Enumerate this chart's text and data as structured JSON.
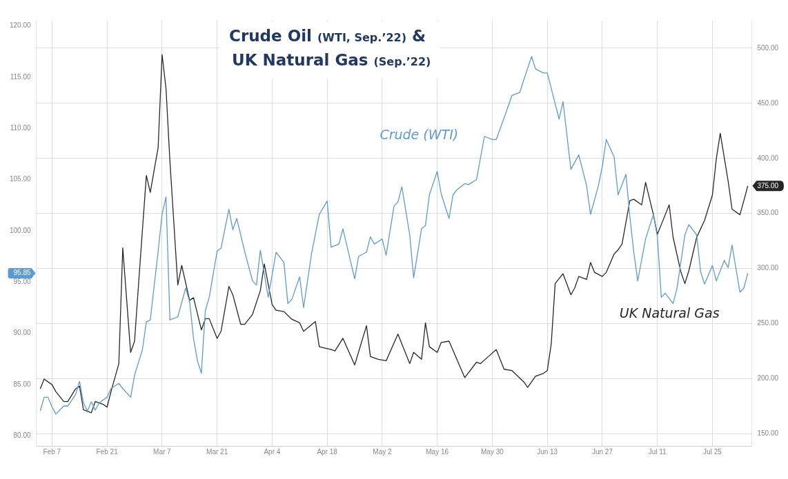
{
  "chart_data": {
    "type": "line",
    "title": "Crude Oil (WTI, Sep.’22) &\nUK Natural Gas (Sep.’22)",
    "xlim": [
      "--02-03",
      "--08-04"
    ],
    "xticks": [
      {
        "value": "--02-07",
        "label": "Feb 7"
      },
      {
        "value": "--02-21",
        "label": "Feb 21"
      },
      {
        "value": "--03-07",
        "label": "Mar 7"
      },
      {
        "value": "--03-21",
        "label": "Mar 21"
      },
      {
        "value": "--04-04",
        "label": "Apr 4"
      },
      {
        "value": "--04-18",
        "label": "Apr 18"
      },
      {
        "value": "--05-02",
        "label": "May 2"
      },
      {
        "value": "--05-16",
        "label": "May 16"
      },
      {
        "value": "--05-30",
        "label": "May 30"
      },
      {
        "value": "--06-13",
        "label": "Jun 13"
      },
      {
        "value": "--06-27",
        "label": "Jun 27"
      },
      {
        "value": "--07-11",
        "label": "Jul 11"
      },
      {
        "value": "--07-25",
        "label": "Jul 25"
      }
    ],
    "ylim": [
      79,
      120.5
    ],
    "yticks": [
      {
        "value": 80,
        "label": "80.00"
      },
      {
        "value": 85,
        "label": "85.00"
      },
      {
        "value": 90,
        "label": "90.00"
      },
      {
        "value": 95,
        "label": "95.00"
      },
      {
        "value": 95.85,
        "label": "95.85"
      },
      {
        "value": 100,
        "label": "100.00"
      },
      {
        "value": 105,
        "label": "105.00"
      },
      {
        "value": 110,
        "label": "110.00"
      },
      {
        "value": 115,
        "label": "115.00"
      },
      {
        "value": 120,
        "label": "120.00"
      }
    ],
    "y2lim": [
      139,
      525
    ],
    "y2ticks": [
      {
        "value": 150,
        "label": "150.00"
      },
      {
        "value": 200,
        "label": "200.00"
      },
      {
        "value": 250,
        "label": "250.00"
      },
      {
        "value": 300,
        "label": "300.00"
      },
      {
        "value": 350,
        "label": "350.00"
      },
      {
        "value": 375,
        "label": "375.00"
      },
      {
        "value": 400,
        "label": "400.00"
      },
      {
        "value": 450,
        "label": "450.00"
      },
      {
        "value": 500,
        "label": "500.00"
      }
    ],
    "grid": true,
    "marker": "none",
    "line_style": "solid",
    "series": [
      {
        "name": "Crude (WTI)",
        "color": "#5b9bd5",
        "axis": "y",
        "x": [
          "--02-04",
          "--02-05",
          "--02-06",
          "--02-07",
          "--02-08",
          "--02-10",
          "--02-11",
          "--02-13",
          "--02-14",
          "--02-15",
          "--02-16",
          "--02-17",
          "--02-18",
          "--02-19",
          "--02-21",
          "--02-22",
          "--02-24",
          "--02-25",
          "--02-27",
          "--02-28",
          "--03-02",
          "--03-03",
          "--03-04",
          "--03-06",
          "--03-07",
          "--03-08",
          "--03-09",
          "--03-11",
          "--03-13",
          "--03-14",
          "--03-15",
          "--03-16",
          "--03-17",
          "--03-18",
          "--03-19",
          "--03-21",
          "--03-22",
          "--03-24",
          "--03-25",
          "--03-26",
          "--03-28",
          "--03-30",
          "--03-31",
          "--04-01",
          "--04-03",
          "--04-05",
          "--04-07",
          "--04-08",
          "--04-09",
          "--04-11",
          "--04-12",
          "--04-14",
          "--04-16",
          "--04-18",
          "--04-19",
          "--04-21",
          "--04-22",
          "--04-25",
          "--04-26",
          "--04-28",
          "--04-29",
          "--04-30",
          "--05-02",
          "--05-03",
          "--05-05",
          "--05-06",
          "--05-07",
          "--05-09",
          "--05-10",
          "--05-12",
          "--05-13",
          "--05-14",
          "--05-16",
          "--05-17",
          "--05-19",
          "--05-20",
          "--05-21",
          "--05-23",
          "--05-24",
          "--05-26",
          "--05-28",
          "--05-30",
          "--05-31",
          "--06-02",
          "--06-04",
          "--06-06",
          "--06-07",
          "--06-09",
          "--06-10",
          "--06-12",
          "--06-13",
          "--06-14",
          "--06-16",
          "--06-17",
          "--06-19",
          "--06-20",
          "--06-21",
          "--06-23",
          "--06-24",
          "--06-26",
          "--06-27",
          "--06-28",
          "--06-30",
          "--07-01",
          "--07-03",
          "--07-04",
          "--07-05",
          "--07-06",
          "--07-08",
          "--07-10",
          "--07-11",
          "--07-12",
          "--07-13",
          "--07-15",
          "--07-16",
          "--07-18",
          "--07-19",
          "--07-21",
          "--07-22",
          "--07-23",
          "--07-25",
          "--07-26",
          "--07-28",
          "--07-29",
          "--07-30",
          "--08-01",
          "--08-02",
          "--08-03"
        ],
        "values": [
          82.4,
          83.75,
          83.75,
          82.8,
          82.1,
          82.9,
          82.9,
          84.0,
          85.3,
          83.2,
          82.4,
          83.3,
          82.5,
          83.2,
          83.75,
          84.6,
          85.1,
          84.6,
          83.75,
          85.9,
          88.4,
          91.1,
          91.3,
          98.0,
          101.6,
          103.3,
          91.3,
          91.6,
          94.4,
          93.1,
          89.5,
          87.3,
          86.1,
          92.2,
          93.5,
          98.0,
          98.3,
          102.1,
          100.1,
          101.2,
          98.0,
          95.1,
          94.7,
          98.1,
          93.5,
          97.9,
          96.9,
          92.9,
          93.3,
          95.5,
          92.5,
          97.7,
          101.6,
          102.9,
          98.4,
          98.7,
          100.2,
          95.3,
          97.5,
          97.9,
          99.4,
          98.7,
          99.2,
          97.6,
          102.4,
          102.8,
          104.3,
          99.6,
          95.4,
          100.2,
          100.5,
          103.5,
          105.8,
          103.6,
          101.2,
          103.5,
          104.0,
          104.6,
          104.5,
          105.0,
          109.2,
          108.9,
          108.9,
          111.0,
          113.2,
          113.5,
          114.7,
          117.0,
          115.8,
          115.4,
          115.4,
          113.9,
          110.9,
          112.6,
          106.0,
          106.7,
          107.4,
          104.4,
          101.6,
          104.4,
          106.3,
          108.9,
          107.2,
          103.5,
          105.5,
          101.4,
          97.9,
          95.1,
          99.2,
          101.6,
          99.4,
          93.5,
          93.9,
          92.9,
          94.4,
          99.6,
          100.6,
          99.6,
          96.0,
          94.8,
          96.6,
          95.1,
          97.1,
          96.4,
          98.6,
          94.0,
          94.4,
          95.85
        ]
      },
      {
        "name": "UK Natural Gas",
        "color": "#262626",
        "axis": "y2",
        "x": [
          "--02-04",
          "--02-05",
          "--02-07",
          "--02-08",
          "--02-10",
          "--02-11",
          "--02-13",
          "--02-14",
          "--02-15",
          "--02-17",
          "--02-18",
          "--02-20",
          "--02-21",
          "--02-22",
          "--02-24",
          "--02-25",
          "--02-27",
          "--02-28",
          "--03-01",
          "--03-03",
          "--03-04",
          "--03-06",
          "--03-07",
          "--03-08",
          "--03-09",
          "--03-11",
          "--03-12",
          "--03-14",
          "--03-15",
          "--03-17",
          "--03-18",
          "--03-19",
          "--03-21",
          "--03-22",
          "--03-24",
          "--03-25",
          "--03-27",
          "--03-28",
          "--03-30",
          "--04-01",
          "--04-02",
          "--04-04",
          "--04-05",
          "--04-07",
          "--04-09",
          "--04-11",
          "--04-12",
          "--04-15",
          "--04-16",
          "--04-19",
          "--04-20",
          "--04-22",
          "--04-25",
          "--04-28",
          "--04-29",
          "--05-01",
          "--05-03",
          "--05-06",
          "--05-09",
          "--05-10",
          "--05-12",
          "--05-13",
          "--05-14",
          "--05-16",
          "--05-17",
          "--05-19",
          "--05-23",
          "--05-26",
          "--05-27",
          "--05-29",
          "--05-31",
          "--06-02",
          "--06-04",
          "--06-07",
          "--06-08",
          "--06-10",
          "--06-12",
          "--06-13",
          "--06-14",
          "--06-15",
          "--06-17",
          "--06-19",
          "--06-20",
          "--06-21",
          "--06-23",
          "--06-24",
          "--06-25",
          "--06-27",
          "--06-28",
          "--06-30",
          "--07-01",
          "--07-02",
          "--07-04",
          "--07-05",
          "--07-07",
          "--07-08",
          "--07-10",
          "--07-11",
          "--07-12",
          "--07-14",
          "--07-15",
          "--07-17",
          "--07-18",
          "--07-19",
          "--07-21",
          "--07-22",
          "--07-23",
          "--07-25",
          "--07-26",
          "--07-27",
          "--07-29",
          "--07-30",
          "--08-01",
          "--08-02",
          "--08-03"
        ],
        "values": [
          190.8,
          199.7,
          194.6,
          188.2,
          179.3,
          179.3,
          190.8,
          193.3,
          171.7,
          169.1,
          179.3,
          176.8,
          174.2,
          188.2,
          213.7,
          318.8,
          223.9,
          234.1,
          285.1,
          384.5,
          369.2,
          410.0,
          494.1,
          463.5,
          397.3,
          285.1,
          302.9,
          271.1,
          273.6,
          244.3,
          254.5,
          254.5,
          236.6,
          243.0,
          283.8,
          276.2,
          249.4,
          249.4,
          258.3,
          280.0,
          304.2,
          267.3,
          262.2,
          260.9,
          254.0,
          250.7,
          243.0,
          251.9,
          229.0,
          226.5,
          225.2,
          236.7,
          212.5,
          248.1,
          220.1,
          217.6,
          216.3,
          240.5,
          213.7,
          223.9,
          217.6,
          250.7,
          229.0,
          223.9,
          232.9,
          234.1,
          201.0,
          215.0,
          213.7,
          220.1,
          226.5,
          208.6,
          207.4,
          197.2,
          192.1,
          202.3,
          204.8,
          207.4,
          231.6,
          286.4,
          295.3,
          276.2,
          282.6,
          292.8,
          290.2,
          305.5,
          296.6,
          292.8,
          296.6,
          313.2,
          317.0,
          322.1,
          361.6,
          362.9,
          357.8,
          378.2,
          348.8,
          331.0,
          339.9,
          357.8,
          328.4,
          296.6,
          286.4,
          297.9,
          328.4,
          336.0,
          343.7,
          366.7,
          399.8,
          422.8,
          379.4,
          353.9,
          348.8,
          361.6,
          375.0
        ]
      }
    ]
  }
}
